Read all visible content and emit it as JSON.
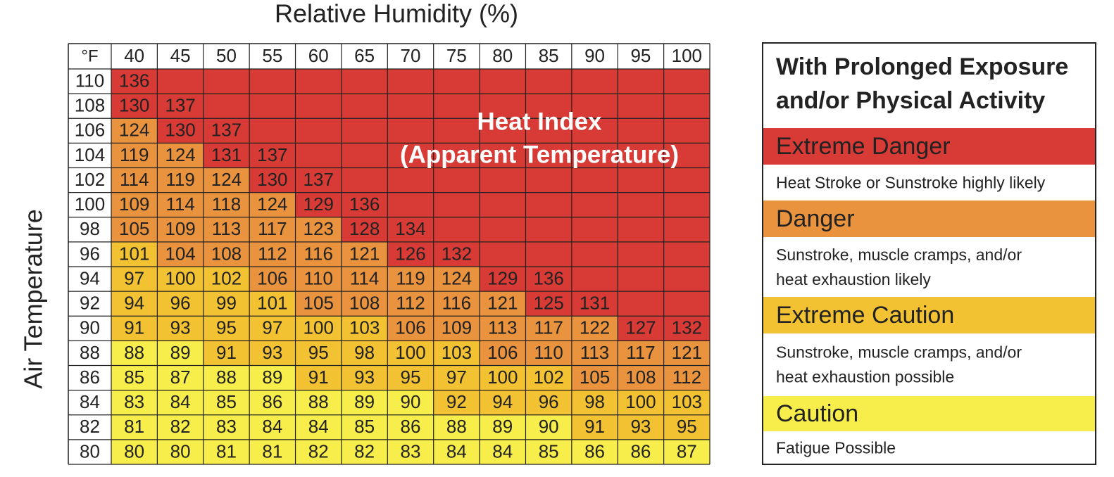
{
  "title": "Relative Humidity (%)",
  "row_axis_label": "Air Temperature",
  "overlay": [
    "Heat Index",
    "(Apparent Temperature)"
  ],
  "table": {
    "corner": "°F",
    "columns": [
      40,
      45,
      50,
      55,
      60,
      65,
      70,
      75,
      80,
      85,
      90,
      95,
      100
    ],
    "rows": [
      {
        "label": 110,
        "values": [
          136
        ]
      },
      {
        "label": 108,
        "values": [
          130,
          137
        ]
      },
      {
        "label": 106,
        "values": [
          124,
          130,
          137
        ]
      },
      {
        "label": 104,
        "values": [
          119,
          124,
          131,
          137
        ]
      },
      {
        "label": 102,
        "values": [
          114,
          119,
          124,
          130,
          137
        ]
      },
      {
        "label": 100,
        "values": [
          109,
          114,
          118,
          124,
          129,
          136
        ]
      },
      {
        "label": 98,
        "values": [
          105,
          109,
          113,
          117,
          123,
          128,
          134
        ]
      },
      {
        "label": 96,
        "values": [
          101,
          104,
          108,
          112,
          116,
          121,
          126,
          132
        ]
      },
      {
        "label": 94,
        "values": [
          97,
          100,
          102,
          106,
          110,
          114,
          119,
          124,
          129,
          136
        ]
      },
      {
        "label": 92,
        "values": [
          94,
          96,
          99,
          101,
          105,
          108,
          112,
          116,
          121,
          125,
          131
        ]
      },
      {
        "label": 90,
        "values": [
          91,
          93,
          95,
          97,
          100,
          103,
          106,
          109,
          113,
          117,
          122,
          127,
          132
        ]
      },
      {
        "label": 88,
        "values": [
          88,
          89,
          91,
          93,
          95,
          98,
          100,
          103,
          106,
          110,
          113,
          117,
          121
        ]
      },
      {
        "label": 86,
        "values": [
          85,
          87,
          88,
          89,
          91,
          93,
          95,
          97,
          100,
          102,
          105,
          108,
          112
        ]
      },
      {
        "label": 84,
        "values": [
          83,
          84,
          85,
          86,
          88,
          89,
          90,
          92,
          94,
          96,
          98,
          100,
          103
        ]
      },
      {
        "label": 82,
        "values": [
          81,
          82,
          83,
          84,
          84,
          85,
          86,
          88,
          89,
          90,
          91,
          93,
          95
        ]
      },
      {
        "label": 80,
        "values": [
          80,
          80,
          81,
          81,
          82,
          82,
          83,
          84,
          84,
          85,
          86,
          86,
          87
        ]
      }
    ]
  },
  "legend": {
    "title": [
      "With Prolonged Exposure",
      "and/or Physical Activity"
    ],
    "levels": [
      {
        "name": "Extreme Danger",
        "color": "#d83a35",
        "description": [
          "Heat Stroke or Sunstroke highly likely"
        ]
      },
      {
        "name": "Danger",
        "color": "#e9933f",
        "description": [
          "Sunstroke, muscle cramps, and/or",
          "heat exhaustion likely"
        ]
      },
      {
        "name": "Extreme Caution",
        "color": "#f3c233",
        "description": [
          "Sunstroke, muscle cramps, and/or",
          "heat exhaustion possible"
        ]
      },
      {
        "name": "Caution",
        "color": "#f8ee4b",
        "description": [
          "Fatigue Possible"
        ]
      }
    ]
  }
}
